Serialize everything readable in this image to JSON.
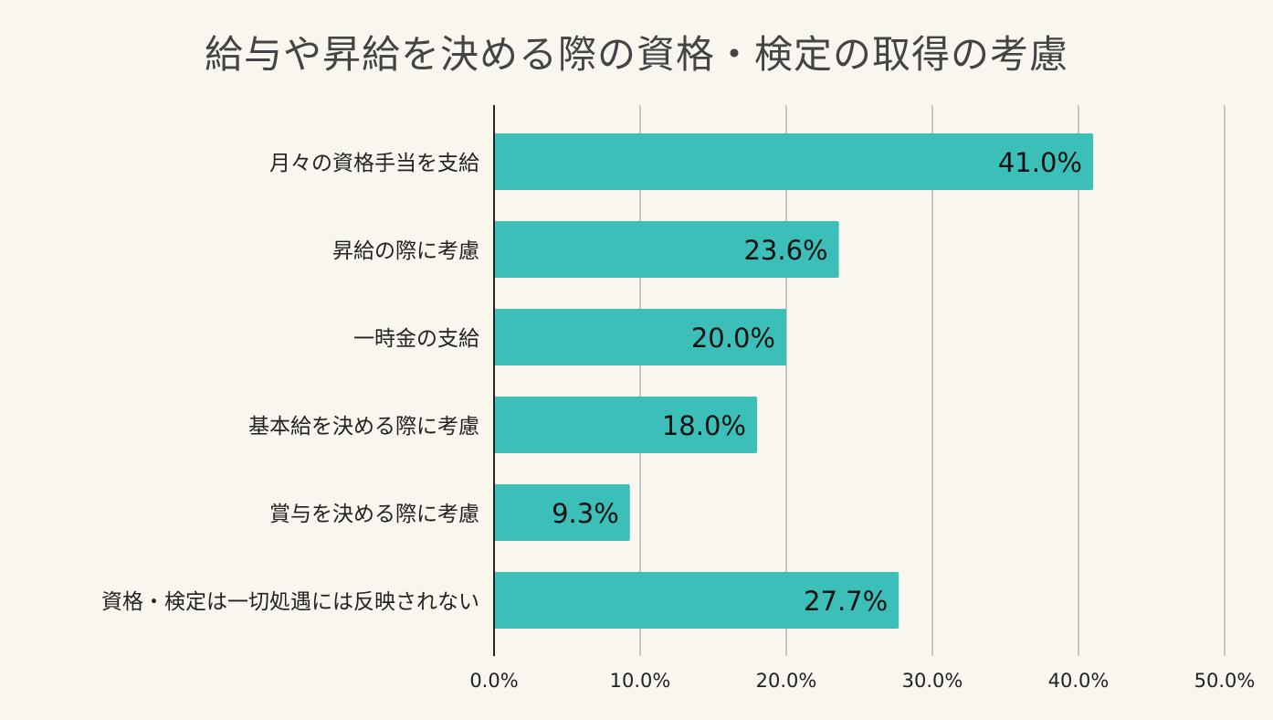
{
  "chart_data": {
    "type": "bar",
    "orientation": "horizontal",
    "title": "給与や昇給を決める際の資格・検定の取得の考慮",
    "categories": [
      "月々の資格手当を支給",
      "昇給の際に考慮",
      "一時金の支給",
      "基本給を決める際に考慮",
      "賞与を決める際に考慮",
      "資格・検定は一切処遇には反映されない"
    ],
    "values": [
      41.0,
      23.6,
      20.0,
      18.0,
      9.3,
      27.7
    ],
    "value_labels": [
      "41.0%",
      "23.6%",
      "20.0%",
      "18.0%",
      "9.3%",
      "27.7%"
    ],
    "xlim": [
      0,
      50
    ],
    "xticks": [
      0,
      10,
      20,
      30,
      40,
      50
    ],
    "xtick_labels": [
      "0.0%",
      "10.0%",
      "20.0%",
      "30.0%",
      "40.0%",
      "50.0%"
    ],
    "xlabel": "",
    "ylabel": "",
    "grid": "vertical",
    "legend": "none",
    "colors": {
      "bar": "#3bbfb8",
      "grid": "#c9c6c0",
      "axis": "#222222",
      "background": "#f9f6f0"
    }
  }
}
